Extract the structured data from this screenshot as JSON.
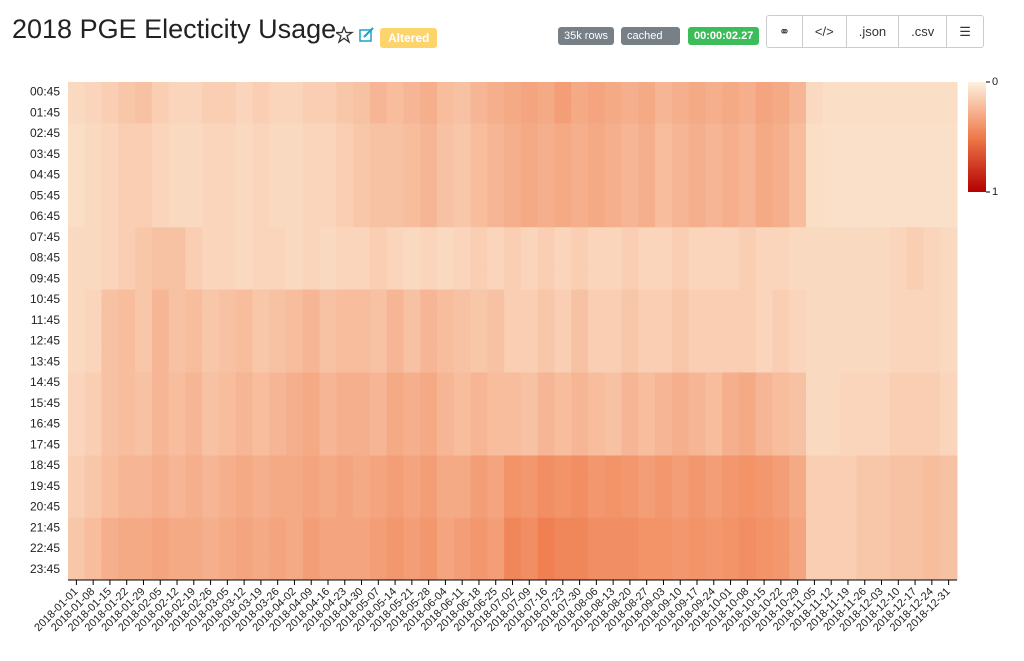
{
  "header": {
    "title": "2018 PGE Electicity Usage",
    "status": "Altered",
    "rows": "35k rows",
    "cache": "cached",
    "timer": "00:00:02.27",
    "json": ".json",
    "csv": ".csv"
  },
  "chart_data": {
    "type": "heatmap",
    "x": [
      "2018-01-01",
      "2018-01-08",
      "2018-01-15",
      "2018-01-22",
      "2018-01-29",
      "2018-02-05",
      "2018-02-12",
      "2018-02-19",
      "2018-02-26",
      "2018-03-05",
      "2018-03-12",
      "2018-03-19",
      "2018-03-26",
      "2018-04-02",
      "2018-04-09",
      "2018-04-16",
      "2018-04-23",
      "2018-04-30",
      "2018-05-07",
      "2018-05-14",
      "2018-05-21",
      "2018-05-28",
      "2018-06-04",
      "2018-06-11",
      "2018-06-18",
      "2018-06-25",
      "2018-07-02",
      "2018-07-09",
      "2018-07-16",
      "2018-07-23",
      "2018-07-30",
      "2018-08-06",
      "2018-08-13",
      "2018-08-20",
      "2018-08-27",
      "2018-09-03",
      "2018-09-10",
      "2018-09-17",
      "2018-09-24",
      "2018-10-01",
      "2018-10-08",
      "2018-10-15",
      "2018-10-22",
      "2018-10-29",
      "2018-11-05",
      "2018-11-12",
      "2018-11-19",
      "2018-11-26",
      "2018-12-03",
      "2018-12-10",
      "2018-12-17",
      "2018-12-24",
      "2018-12-31"
    ],
    "y": [
      "00:45",
      "01:45",
      "02:45",
      "03:45",
      "04:45",
      "05:45",
      "06:45",
      "07:45",
      "08:45",
      "09:45",
      "10:45",
      "11:45",
      "12:45",
      "13:45",
      "14:45",
      "15:45",
      "16:45",
      "17:45",
      "18:45",
      "19:45",
      "20:45",
      "21:45",
      "22:45",
      "23:45"
    ],
    "values": [
      [
        0.1,
        0.12,
        0.15,
        0.18,
        0.2,
        0.15,
        0.12,
        0.12,
        0.15,
        0.15,
        0.12,
        0.15,
        0.12,
        0.12,
        0.15,
        0.15,
        0.18,
        0.2,
        0.25,
        0.22,
        0.25,
        0.28,
        0.22,
        0.2,
        0.25,
        0.28,
        0.3,
        0.32,
        0.3,
        0.35,
        0.3,
        0.32,
        0.3,
        0.28,
        0.3,
        0.25,
        0.28,
        0.3,
        0.28,
        0.3,
        0.28,
        0.32,
        0.3,
        0.25,
        0.1,
        0.08,
        0.08,
        0.08,
        0.08,
        0.08,
        0.08,
        0.08,
        0.08
      ],
      [
        0.1,
        0.12,
        0.15,
        0.18,
        0.2,
        0.15,
        0.12,
        0.12,
        0.15,
        0.15,
        0.12,
        0.15,
        0.12,
        0.12,
        0.15,
        0.15,
        0.18,
        0.2,
        0.25,
        0.22,
        0.25,
        0.28,
        0.22,
        0.2,
        0.25,
        0.28,
        0.3,
        0.32,
        0.3,
        0.35,
        0.3,
        0.32,
        0.3,
        0.28,
        0.3,
        0.25,
        0.28,
        0.3,
        0.28,
        0.3,
        0.28,
        0.32,
        0.3,
        0.25,
        0.1,
        0.08,
        0.08,
        0.08,
        0.08,
        0.08,
        0.08,
        0.08,
        0.08
      ],
      [
        0.08,
        0.1,
        0.12,
        0.15,
        0.15,
        0.12,
        0.1,
        0.1,
        0.12,
        0.12,
        0.1,
        0.12,
        0.1,
        0.1,
        0.12,
        0.12,
        0.15,
        0.18,
        0.2,
        0.2,
        0.22,
        0.25,
        0.2,
        0.18,
        0.22,
        0.25,
        0.28,
        0.3,
        0.28,
        0.3,
        0.28,
        0.3,
        0.28,
        0.25,
        0.28,
        0.22,
        0.25,
        0.28,
        0.25,
        0.28,
        0.25,
        0.3,
        0.28,
        0.22,
        0.08,
        0.07,
        0.07,
        0.07,
        0.07,
        0.07,
        0.07,
        0.07,
        0.07
      ],
      [
        0.08,
        0.1,
        0.12,
        0.15,
        0.15,
        0.12,
        0.1,
        0.1,
        0.12,
        0.12,
        0.1,
        0.12,
        0.1,
        0.1,
        0.12,
        0.12,
        0.15,
        0.18,
        0.2,
        0.2,
        0.22,
        0.25,
        0.2,
        0.18,
        0.22,
        0.25,
        0.28,
        0.3,
        0.28,
        0.3,
        0.28,
        0.3,
        0.28,
        0.25,
        0.28,
        0.22,
        0.25,
        0.28,
        0.25,
        0.28,
        0.25,
        0.3,
        0.28,
        0.22,
        0.08,
        0.07,
        0.07,
        0.07,
        0.07,
        0.07,
        0.07,
        0.07,
        0.07
      ],
      [
        0.08,
        0.1,
        0.12,
        0.15,
        0.15,
        0.12,
        0.1,
        0.1,
        0.12,
        0.12,
        0.1,
        0.12,
        0.1,
        0.1,
        0.12,
        0.12,
        0.15,
        0.18,
        0.2,
        0.2,
        0.22,
        0.25,
        0.2,
        0.18,
        0.22,
        0.25,
        0.28,
        0.3,
        0.28,
        0.3,
        0.28,
        0.3,
        0.28,
        0.25,
        0.28,
        0.22,
        0.25,
        0.28,
        0.25,
        0.28,
        0.25,
        0.3,
        0.28,
        0.22,
        0.08,
        0.07,
        0.07,
        0.07,
        0.07,
        0.07,
        0.07,
        0.07,
        0.07
      ],
      [
        0.08,
        0.1,
        0.12,
        0.15,
        0.15,
        0.12,
        0.1,
        0.1,
        0.12,
        0.12,
        0.1,
        0.12,
        0.1,
        0.1,
        0.12,
        0.12,
        0.15,
        0.18,
        0.2,
        0.2,
        0.22,
        0.25,
        0.2,
        0.18,
        0.22,
        0.25,
        0.28,
        0.3,
        0.28,
        0.3,
        0.28,
        0.3,
        0.28,
        0.25,
        0.28,
        0.22,
        0.25,
        0.28,
        0.25,
        0.28,
        0.25,
        0.3,
        0.28,
        0.22,
        0.08,
        0.07,
        0.07,
        0.07,
        0.07,
        0.07,
        0.07,
        0.07,
        0.07
      ],
      [
        0.08,
        0.1,
        0.12,
        0.15,
        0.15,
        0.12,
        0.1,
        0.1,
        0.12,
        0.12,
        0.1,
        0.12,
        0.1,
        0.1,
        0.12,
        0.12,
        0.15,
        0.18,
        0.2,
        0.2,
        0.22,
        0.25,
        0.2,
        0.18,
        0.22,
        0.25,
        0.28,
        0.3,
        0.28,
        0.3,
        0.28,
        0.3,
        0.28,
        0.25,
        0.28,
        0.22,
        0.25,
        0.28,
        0.25,
        0.28,
        0.25,
        0.3,
        0.28,
        0.22,
        0.08,
        0.07,
        0.07,
        0.07,
        0.07,
        0.07,
        0.07,
        0.07,
        0.07
      ],
      [
        0.1,
        0.1,
        0.12,
        0.15,
        0.18,
        0.2,
        0.2,
        0.15,
        0.12,
        0.12,
        0.1,
        0.12,
        0.12,
        0.1,
        0.12,
        0.1,
        0.12,
        0.12,
        0.15,
        0.12,
        0.1,
        0.12,
        0.1,
        0.12,
        0.15,
        0.12,
        0.15,
        0.12,
        0.15,
        0.12,
        0.15,
        0.12,
        0.12,
        0.15,
        0.12,
        0.12,
        0.15,
        0.12,
        0.12,
        0.12,
        0.15,
        0.12,
        0.12,
        0.1,
        0.1,
        0.1,
        0.1,
        0.1,
        0.1,
        0.12,
        0.15,
        0.12,
        0.1
      ],
      [
        0.1,
        0.1,
        0.12,
        0.15,
        0.18,
        0.2,
        0.2,
        0.15,
        0.12,
        0.12,
        0.1,
        0.12,
        0.12,
        0.1,
        0.12,
        0.1,
        0.12,
        0.12,
        0.15,
        0.12,
        0.1,
        0.12,
        0.1,
        0.12,
        0.15,
        0.12,
        0.15,
        0.12,
        0.15,
        0.12,
        0.15,
        0.12,
        0.12,
        0.15,
        0.12,
        0.12,
        0.15,
        0.12,
        0.12,
        0.12,
        0.15,
        0.12,
        0.12,
        0.1,
        0.1,
        0.1,
        0.1,
        0.1,
        0.1,
        0.12,
        0.15,
        0.12,
        0.1
      ],
      [
        0.1,
        0.1,
        0.12,
        0.15,
        0.18,
        0.2,
        0.2,
        0.15,
        0.12,
        0.12,
        0.1,
        0.12,
        0.12,
        0.1,
        0.12,
        0.1,
        0.12,
        0.12,
        0.15,
        0.12,
        0.1,
        0.12,
        0.1,
        0.12,
        0.15,
        0.12,
        0.15,
        0.12,
        0.15,
        0.12,
        0.15,
        0.12,
        0.12,
        0.15,
        0.12,
        0.12,
        0.15,
        0.12,
        0.12,
        0.12,
        0.15,
        0.12,
        0.12,
        0.1,
        0.1,
        0.1,
        0.1,
        0.1,
        0.1,
        0.12,
        0.15,
        0.12,
        0.1
      ],
      [
        0.1,
        0.12,
        0.2,
        0.22,
        0.18,
        0.25,
        0.2,
        0.22,
        0.18,
        0.2,
        0.22,
        0.18,
        0.2,
        0.22,
        0.25,
        0.2,
        0.22,
        0.22,
        0.2,
        0.25,
        0.2,
        0.25,
        0.22,
        0.2,
        0.18,
        0.2,
        0.15,
        0.15,
        0.18,
        0.15,
        0.2,
        0.15,
        0.15,
        0.18,
        0.15,
        0.15,
        0.18,
        0.15,
        0.15,
        0.15,
        0.15,
        0.12,
        0.15,
        0.12,
        0.1,
        0.1,
        0.1,
        0.1,
        0.1,
        0.12,
        0.12,
        0.12,
        0.1
      ],
      [
        0.1,
        0.12,
        0.2,
        0.22,
        0.18,
        0.25,
        0.2,
        0.22,
        0.18,
        0.2,
        0.22,
        0.18,
        0.2,
        0.22,
        0.25,
        0.2,
        0.22,
        0.22,
        0.2,
        0.25,
        0.2,
        0.25,
        0.22,
        0.2,
        0.18,
        0.2,
        0.15,
        0.15,
        0.18,
        0.15,
        0.2,
        0.15,
        0.15,
        0.18,
        0.15,
        0.15,
        0.18,
        0.15,
        0.15,
        0.15,
        0.15,
        0.12,
        0.15,
        0.12,
        0.1,
        0.1,
        0.1,
        0.1,
        0.1,
        0.12,
        0.12,
        0.12,
        0.1
      ],
      [
        0.1,
        0.12,
        0.2,
        0.22,
        0.18,
        0.25,
        0.2,
        0.22,
        0.18,
        0.2,
        0.22,
        0.18,
        0.2,
        0.22,
        0.25,
        0.2,
        0.22,
        0.22,
        0.2,
        0.25,
        0.2,
        0.25,
        0.22,
        0.2,
        0.18,
        0.2,
        0.15,
        0.15,
        0.18,
        0.15,
        0.2,
        0.15,
        0.15,
        0.18,
        0.15,
        0.15,
        0.18,
        0.15,
        0.15,
        0.15,
        0.15,
        0.12,
        0.15,
        0.12,
        0.1,
        0.1,
        0.1,
        0.1,
        0.1,
        0.12,
        0.12,
        0.12,
        0.1
      ],
      [
        0.1,
        0.12,
        0.2,
        0.22,
        0.18,
        0.25,
        0.2,
        0.22,
        0.18,
        0.2,
        0.22,
        0.18,
        0.2,
        0.22,
        0.25,
        0.2,
        0.22,
        0.22,
        0.2,
        0.25,
        0.2,
        0.25,
        0.22,
        0.2,
        0.18,
        0.2,
        0.15,
        0.15,
        0.18,
        0.15,
        0.2,
        0.15,
        0.15,
        0.18,
        0.15,
        0.15,
        0.18,
        0.15,
        0.15,
        0.15,
        0.15,
        0.12,
        0.15,
        0.12,
        0.1,
        0.1,
        0.1,
        0.1,
        0.1,
        0.12,
        0.12,
        0.12,
        0.1
      ],
      [
        0.12,
        0.15,
        0.2,
        0.22,
        0.2,
        0.25,
        0.22,
        0.25,
        0.2,
        0.22,
        0.25,
        0.22,
        0.25,
        0.28,
        0.3,
        0.25,
        0.28,
        0.28,
        0.25,
        0.3,
        0.28,
        0.3,
        0.25,
        0.22,
        0.25,
        0.22,
        0.22,
        0.2,
        0.25,
        0.22,
        0.25,
        0.22,
        0.2,
        0.25,
        0.22,
        0.25,
        0.28,
        0.25,
        0.22,
        0.28,
        0.3,
        0.25,
        0.22,
        0.2,
        0.1,
        0.1,
        0.12,
        0.12,
        0.12,
        0.15,
        0.15,
        0.15,
        0.12
      ],
      [
        0.12,
        0.15,
        0.2,
        0.22,
        0.2,
        0.25,
        0.22,
        0.25,
        0.2,
        0.22,
        0.25,
        0.22,
        0.25,
        0.28,
        0.3,
        0.25,
        0.28,
        0.28,
        0.25,
        0.3,
        0.28,
        0.3,
        0.25,
        0.22,
        0.25,
        0.22,
        0.22,
        0.2,
        0.25,
        0.22,
        0.25,
        0.22,
        0.2,
        0.25,
        0.22,
        0.25,
        0.28,
        0.25,
        0.22,
        0.28,
        0.3,
        0.25,
        0.22,
        0.2,
        0.1,
        0.1,
        0.12,
        0.12,
        0.12,
        0.15,
        0.15,
        0.15,
        0.12
      ],
      [
        0.12,
        0.15,
        0.2,
        0.22,
        0.2,
        0.25,
        0.22,
        0.25,
        0.2,
        0.22,
        0.25,
        0.22,
        0.25,
        0.28,
        0.3,
        0.25,
        0.28,
        0.28,
        0.25,
        0.3,
        0.28,
        0.3,
        0.25,
        0.22,
        0.25,
        0.22,
        0.22,
        0.2,
        0.25,
        0.22,
        0.25,
        0.22,
        0.2,
        0.25,
        0.22,
        0.25,
        0.28,
        0.25,
        0.22,
        0.28,
        0.3,
        0.25,
        0.22,
        0.2,
        0.1,
        0.1,
        0.12,
        0.12,
        0.12,
        0.15,
        0.15,
        0.15,
        0.12
      ],
      [
        0.12,
        0.15,
        0.2,
        0.22,
        0.2,
        0.25,
        0.22,
        0.25,
        0.2,
        0.22,
        0.25,
        0.22,
        0.25,
        0.28,
        0.3,
        0.25,
        0.28,
        0.28,
        0.25,
        0.3,
        0.28,
        0.3,
        0.25,
        0.22,
        0.25,
        0.22,
        0.22,
        0.2,
        0.25,
        0.22,
        0.25,
        0.22,
        0.2,
        0.25,
        0.22,
        0.25,
        0.28,
        0.25,
        0.22,
        0.28,
        0.3,
        0.25,
        0.22,
        0.2,
        0.1,
        0.1,
        0.12,
        0.12,
        0.12,
        0.15,
        0.15,
        0.15,
        0.12
      ],
      [
        0.15,
        0.18,
        0.22,
        0.25,
        0.25,
        0.28,
        0.25,
        0.28,
        0.25,
        0.28,
        0.3,
        0.28,
        0.3,
        0.3,
        0.32,
        0.3,
        0.32,
        0.3,
        0.32,
        0.35,
        0.32,
        0.35,
        0.3,
        0.3,
        0.35,
        0.32,
        0.4,
        0.38,
        0.42,
        0.4,
        0.42,
        0.38,
        0.4,
        0.38,
        0.35,
        0.38,
        0.35,
        0.38,
        0.35,
        0.38,
        0.4,
        0.38,
        0.35,
        0.3,
        0.15,
        0.15,
        0.15,
        0.18,
        0.18,
        0.2,
        0.2,
        0.22,
        0.2
      ],
      [
        0.15,
        0.18,
        0.22,
        0.25,
        0.25,
        0.28,
        0.25,
        0.28,
        0.25,
        0.28,
        0.3,
        0.28,
        0.3,
        0.3,
        0.32,
        0.3,
        0.32,
        0.3,
        0.32,
        0.35,
        0.32,
        0.35,
        0.3,
        0.3,
        0.35,
        0.32,
        0.4,
        0.38,
        0.42,
        0.4,
        0.42,
        0.38,
        0.4,
        0.38,
        0.35,
        0.38,
        0.35,
        0.38,
        0.35,
        0.38,
        0.4,
        0.38,
        0.35,
        0.3,
        0.15,
        0.15,
        0.15,
        0.18,
        0.18,
        0.2,
        0.2,
        0.22,
        0.2
      ],
      [
        0.15,
        0.18,
        0.22,
        0.25,
        0.25,
        0.28,
        0.25,
        0.28,
        0.25,
        0.28,
        0.3,
        0.28,
        0.3,
        0.3,
        0.32,
        0.3,
        0.32,
        0.3,
        0.32,
        0.35,
        0.32,
        0.35,
        0.3,
        0.3,
        0.35,
        0.32,
        0.4,
        0.38,
        0.42,
        0.4,
        0.42,
        0.38,
        0.4,
        0.38,
        0.35,
        0.38,
        0.35,
        0.38,
        0.35,
        0.38,
        0.4,
        0.38,
        0.35,
        0.3,
        0.15,
        0.15,
        0.15,
        0.18,
        0.18,
        0.2,
        0.2,
        0.22,
        0.2
      ],
      [
        0.18,
        0.22,
        0.28,
        0.3,
        0.3,
        0.32,
        0.3,
        0.3,
        0.28,
        0.3,
        0.32,
        0.3,
        0.32,
        0.3,
        0.35,
        0.32,
        0.32,
        0.32,
        0.35,
        0.38,
        0.35,
        0.38,
        0.32,
        0.35,
        0.38,
        0.35,
        0.45,
        0.42,
        0.48,
        0.45,
        0.45,
        0.42,
        0.42,
        0.42,
        0.4,
        0.4,
        0.38,
        0.4,
        0.38,
        0.4,
        0.42,
        0.4,
        0.38,
        0.32,
        0.15,
        0.15,
        0.15,
        0.18,
        0.18,
        0.2,
        0.2,
        0.22,
        0.2
      ],
      [
        0.18,
        0.22,
        0.28,
        0.3,
        0.3,
        0.32,
        0.3,
        0.3,
        0.28,
        0.3,
        0.32,
        0.3,
        0.32,
        0.3,
        0.35,
        0.32,
        0.32,
        0.32,
        0.35,
        0.38,
        0.35,
        0.38,
        0.32,
        0.35,
        0.38,
        0.35,
        0.45,
        0.42,
        0.48,
        0.45,
        0.45,
        0.42,
        0.42,
        0.42,
        0.4,
        0.4,
        0.38,
        0.4,
        0.38,
        0.4,
        0.42,
        0.4,
        0.38,
        0.32,
        0.15,
        0.15,
        0.15,
        0.18,
        0.18,
        0.2,
        0.2,
        0.22,
        0.2
      ],
      [
        0.18,
        0.22,
        0.28,
        0.3,
        0.3,
        0.32,
        0.3,
        0.3,
        0.28,
        0.3,
        0.32,
        0.3,
        0.32,
        0.3,
        0.35,
        0.32,
        0.32,
        0.32,
        0.35,
        0.38,
        0.35,
        0.38,
        0.32,
        0.35,
        0.38,
        0.35,
        0.45,
        0.42,
        0.48,
        0.45,
        0.45,
        0.42,
        0.42,
        0.42,
        0.4,
        0.4,
        0.38,
        0.4,
        0.38,
        0.4,
        0.42,
        0.4,
        0.38,
        0.32,
        0.15,
        0.15,
        0.15,
        0.18,
        0.18,
        0.2,
        0.2,
        0.22,
        0.2
      ]
    ],
    "zlim": [
      0,
      1
    ],
    "zticks": [
      0,
      1
    ],
    "colors": [
      "#fdf1de",
      "#ef7b4b",
      "#b30000"
    ]
  }
}
